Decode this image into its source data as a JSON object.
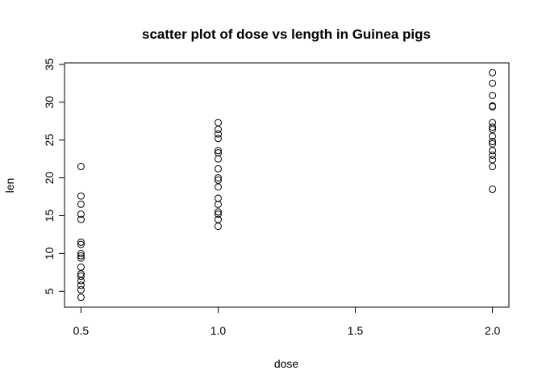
{
  "chart_data": {
    "type": "scatter",
    "title": "scatter plot of dose vs length in Guinea pigs",
    "xlabel": "dose",
    "ylabel": "len",
    "xlim": [
      0.44,
      2.06
    ],
    "ylim": [
      2.9,
      35.2
    ],
    "xticks": [
      0.5,
      1.0,
      1.5,
      2.0
    ],
    "xtick_labels": [
      "0.5",
      "1.0",
      "1.5",
      "2.0"
    ],
    "yticks": [
      5,
      10,
      15,
      20,
      25,
      30,
      35
    ],
    "ytick_labels": [
      "5",
      "10",
      "15",
      "20",
      "25",
      "30",
      "35"
    ],
    "grid": false,
    "marker": "open-circle",
    "points": [
      {
        "x": 0.5,
        "y": 4.2
      },
      {
        "x": 0.5,
        "y": 5.2
      },
      {
        "x": 0.5,
        "y": 5.8
      },
      {
        "x": 0.5,
        "y": 6.4
      },
      {
        "x": 0.5,
        "y": 7.0
      },
      {
        "x": 0.5,
        "y": 7.3
      },
      {
        "x": 0.5,
        "y": 8.2
      },
      {
        "x": 0.5,
        "y": 9.4
      },
      {
        "x": 0.5,
        "y": 9.7
      },
      {
        "x": 0.5,
        "y": 10.0
      },
      {
        "x": 0.5,
        "y": 11.2
      },
      {
        "x": 0.5,
        "y": 11.5
      },
      {
        "x": 0.5,
        "y": 14.5
      },
      {
        "x": 0.5,
        "y": 15.2
      },
      {
        "x": 0.5,
        "y": 16.5
      },
      {
        "x": 0.5,
        "y": 17.6
      },
      {
        "x": 0.5,
        "y": 21.5
      },
      {
        "x": 1.0,
        "y": 13.6
      },
      {
        "x": 1.0,
        "y": 14.5
      },
      {
        "x": 1.0,
        "y": 15.2
      },
      {
        "x": 1.0,
        "y": 15.5
      },
      {
        "x": 1.0,
        "y": 16.5
      },
      {
        "x": 1.0,
        "y": 17.3
      },
      {
        "x": 1.0,
        "y": 18.8
      },
      {
        "x": 1.0,
        "y": 19.7
      },
      {
        "x": 1.0,
        "y": 20.0
      },
      {
        "x": 1.0,
        "y": 21.2
      },
      {
        "x": 1.0,
        "y": 22.5
      },
      {
        "x": 1.0,
        "y": 23.3
      },
      {
        "x": 1.0,
        "y": 23.6
      },
      {
        "x": 1.0,
        "y": 25.2
      },
      {
        "x": 1.0,
        "y": 25.8
      },
      {
        "x": 1.0,
        "y": 26.4
      },
      {
        "x": 1.0,
        "y": 27.3
      },
      {
        "x": 2.0,
        "y": 18.5
      },
      {
        "x": 2.0,
        "y": 21.5
      },
      {
        "x": 2.0,
        "y": 22.4
      },
      {
        "x": 2.0,
        "y": 23.0
      },
      {
        "x": 2.0,
        "y": 23.6
      },
      {
        "x": 2.0,
        "y": 24.5
      },
      {
        "x": 2.0,
        "y": 24.8
      },
      {
        "x": 2.0,
        "y": 25.5
      },
      {
        "x": 2.0,
        "y": 26.4
      },
      {
        "x": 2.0,
        "y": 26.7
      },
      {
        "x": 2.0,
        "y": 27.3
      },
      {
        "x": 2.0,
        "y": 29.4
      },
      {
        "x": 2.0,
        "y": 29.5
      },
      {
        "x": 2.0,
        "y": 30.9
      },
      {
        "x": 2.0,
        "y": 32.5
      },
      {
        "x": 2.0,
        "y": 33.9
      }
    ]
  }
}
